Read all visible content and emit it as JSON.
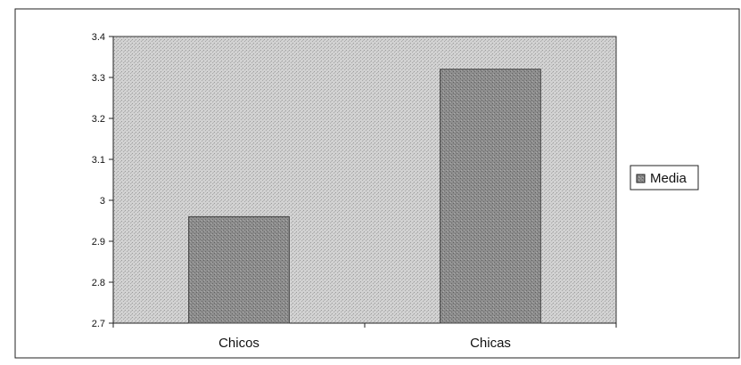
{
  "chart_data": {
    "type": "bar",
    "title": "",
    "xlabel": "",
    "ylabel": "",
    "categories": [
      "Chicos",
      "Chicas"
    ],
    "series": [
      {
        "name": "Media",
        "values": [
          2.96,
          3.32
        ]
      }
    ],
    "ylim": [
      2.7,
      3.4
    ],
    "yticks": [
      "3.4",
      "3.3",
      "3.2",
      "3.1",
      "3",
      "2.9",
      "2.8",
      "2.7"
    ],
    "grid": false,
    "legend_position": "right",
    "colors": {
      "plot_background": "#c8c8c8",
      "bar_fill": "#8a8a8a",
      "bar_stroke": "#444444",
      "legend_swatch": "#8a8a8a"
    }
  }
}
